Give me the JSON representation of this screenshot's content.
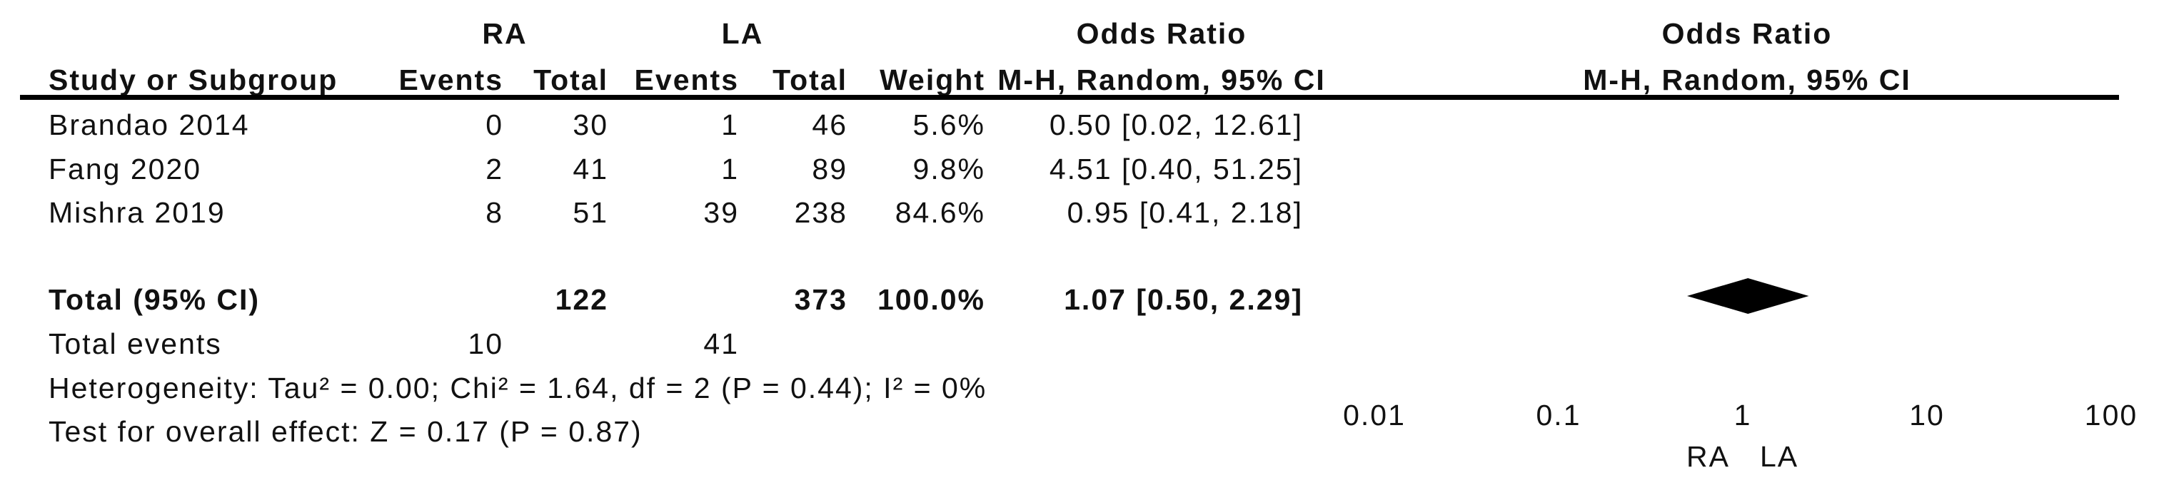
{
  "table": {
    "group_headers": {
      "ra": "RA",
      "la": "LA"
    },
    "col_headers": {
      "study": "Study or Subgroup",
      "ra_events": "Events",
      "ra_total": "Total",
      "la_events": "Events",
      "la_total": "Total",
      "weight": "Weight",
      "or_line1": "Odds Ratio",
      "or_line2": "M-H, Random, 95% CI"
    },
    "rows": [
      {
        "study": "Brandao 2014",
        "ra_events": "0",
        "ra_total": "30",
        "la_events": "1",
        "la_total": "46",
        "weight": "5.6%",
        "or_ci": "0.50 [0.02, 12.61]"
      },
      {
        "study": "Fang 2020",
        "ra_events": "2",
        "ra_total": "41",
        "la_events": "1",
        "la_total": "89",
        "weight": "9.8%",
        "or_ci": "4.51 [0.40, 51.25]"
      },
      {
        "study": "Mishra 2019",
        "ra_events": "8",
        "ra_total": "51",
        "la_events": "39",
        "la_total": "238",
        "weight": "84.6%",
        "or_ci": "0.95 [0.41, 2.18]"
      }
    ],
    "total_row": {
      "label": "Total (95% CI)",
      "ra_total": "122",
      "la_total": "373",
      "weight": "100.0%",
      "or_ci": "1.07 [0.50, 2.29]"
    },
    "total_events": {
      "label": "Total events",
      "ra": "10",
      "la": "41"
    },
    "heterogeneity": "Heterogeneity: Tau² = 0.00; Chi² = 1.64, df = 2 (P = 0.44); I² = 0%",
    "overall_effect": "Test for overall effect: Z = 0.17 (P = 0.87)"
  },
  "plot": {
    "header_line1": "Odds Ratio",
    "header_line2": "M-H, Random, 95% CI",
    "tick_labels": [
      "0.01",
      "0.1",
      "1",
      "10",
      "100"
    ],
    "favours_left": "RA",
    "favours_right": "LA",
    "colors": {
      "marker": "#1414CC",
      "diamond": "#000000",
      "ci_line": "#2e2e2e"
    }
  },
  "chart_data": {
    "type": "forest",
    "effect_measure": "Odds Ratio, M-H, Random, 95% CI",
    "x_scale": "log10",
    "x_ticks": [
      0.01,
      0.1,
      1,
      10,
      100
    ],
    "x_range": [
      0.01,
      100
    ],
    "center_null_value": 1,
    "studies": [
      {
        "name": "Brandao 2014",
        "or": 0.5,
        "ci_low": 0.02,
        "ci_high": 12.61,
        "weight_pct": 5.6
      },
      {
        "name": "Fang 2020",
        "or": 4.51,
        "ci_low": 0.4,
        "ci_high": 51.25,
        "weight_pct": 9.8
      },
      {
        "name": "Mishra 2019",
        "or": 0.95,
        "ci_low": 0.41,
        "ci_high": 2.18,
        "weight_pct": 84.6
      }
    ],
    "total": {
      "name": "Total (95% CI)",
      "or": 1.07,
      "ci_low": 0.5,
      "ci_high": 2.29,
      "weight_pct": 100.0
    },
    "heterogeneity": {
      "tau2": 0.0,
      "chi2": 1.64,
      "df": 2,
      "p": 0.44,
      "i2_pct": 0
    },
    "overall_effect": {
      "z": 0.17,
      "p": 0.87
    }
  }
}
